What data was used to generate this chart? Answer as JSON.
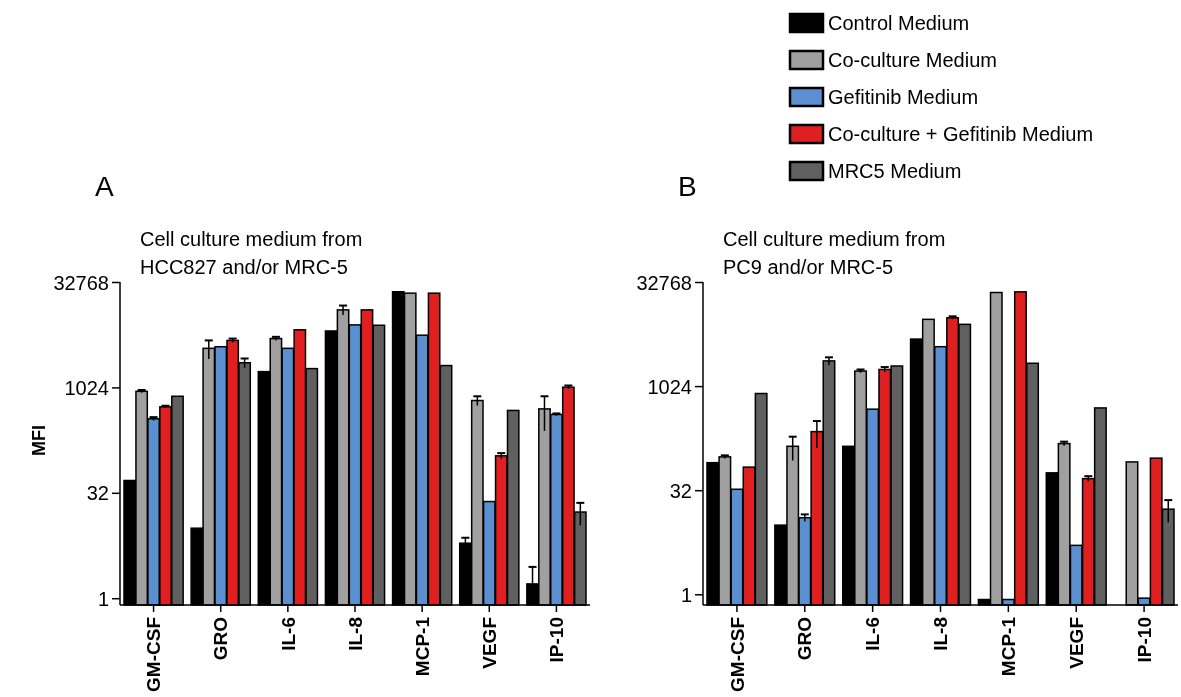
{
  "chart_data": [
    {
      "type": "bar",
      "title": "Cell culture medium from\nHCC827 and/or MRC-5",
      "ylabel": "MFI",
      "annotations": [
        "A"
      ],
      "categories": [
        "GM-CSF",
        "GRO",
        "IL-6",
        "IL-8",
        "MCP-1",
        "VEGF",
        "IP-10"
      ],
      "log": true,
      "ylim": [
        0.8,
        32768
      ],
      "yticks": [
        1,
        32,
        1024,
        32768
      ],
      "grid": false,
      "legend": false,
      "series": [
        {
          "color": "#000000",
          "values": [
            48,
            10,
            1720,
            6550,
            23800,
            6.1,
            1.6
          ],
          "errors": [
            null,
            null,
            null,
            null,
            null,
            [
              6.1,
              7.3
            ],
            [
              1.6,
              2.8
            ]
          ]
        },
        {
          "color": "#a0a0a0",
          "values": [
            900,
            3700,
            5100,
            13100,
            22700,
            665,
            505
          ],
          "errors": [
            40,
            1100,
            300,
            2000,
            null,
            100,
            260
          ]
        },
        {
          "color": "#5b8fd0",
          "values": [
            365,
            3900,
            3700,
            8000,
            5700,
            24,
            420
          ],
          "errors": [
            20,
            null,
            null,
            null,
            null,
            null,
            15
          ]
        },
        {
          "color": "#e02020",
          "values": [
            540,
            4800,
            6800,
            13100,
            22700,
            108,
            1030
          ],
          "errors": [
            20,
            300,
            null,
            null,
            null,
            10,
            60
          ]
        },
        {
          "color": "#606060",
          "values": [
            765,
            2300,
            1900,
            7900,
            2100,
            480,
            17
          ],
          "errors": [
            null,
            350,
            null,
            null,
            null,
            null,
            6
          ]
        }
      ]
    },
    {
      "type": "bar",
      "title": "Cell culture medium from\nPC9 and/or MRC-5",
      "annotations": [
        "B"
      ],
      "categories": [
        "GM-CSF",
        "GRO",
        "IL-6",
        "IL-8",
        "MCP-1",
        "VEGF",
        "IP-10"
      ],
      "log": true,
      "ylim": [
        0.7,
        32768
      ],
      "yticks": [
        1,
        32,
        1024,
        32768
      ],
      "grid": false,
      "legend": "top right",
      "series": [
        {
          "name": "Control Medium",
          "color": "#000000",
          "values": [
            80,
            10,
            138,
            4900,
            0.84,
            57,
            null
          ]
        },
        {
          "name": "Co-culture Medium",
          "color": "#a0a0a0",
          "values": [
            97,
            138,
            1690,
            9450,
            23100,
            151,
            82
          ],
          "errors": [
            5,
            52,
            90,
            null,
            null,
            10,
            null
          ]
        },
        {
          "name": "Gefitinib Medium",
          "color": "#5b8fd0",
          "values": [
            33,
            12.8,
            475,
            3800,
            0.84,
            5.1,
            0.88
          ],
          "errors": [
            null,
            1.5,
            null,
            null,
            null,
            null,
            null
          ]
        },
        {
          "name": "Co-culture + Gefitinib Medium",
          "color": "#e02020",
          "values": [
            69,
            225,
            1780,
            9950,
            23600,
            47,
            93
          ],
          "errors": [
            null,
            95,
            150,
            500,
            null,
            4,
            null
          ]
        },
        {
          "name": "MRC5 Medium",
          "color": "#606060",
          "values": [
            800,
            2370,
            2000,
            8000,
            2190,
            495,
            17
          ],
          "errors": [
            null,
            300,
            null,
            null,
            null,
            null,
            6
          ]
        }
      ]
    }
  ]
}
